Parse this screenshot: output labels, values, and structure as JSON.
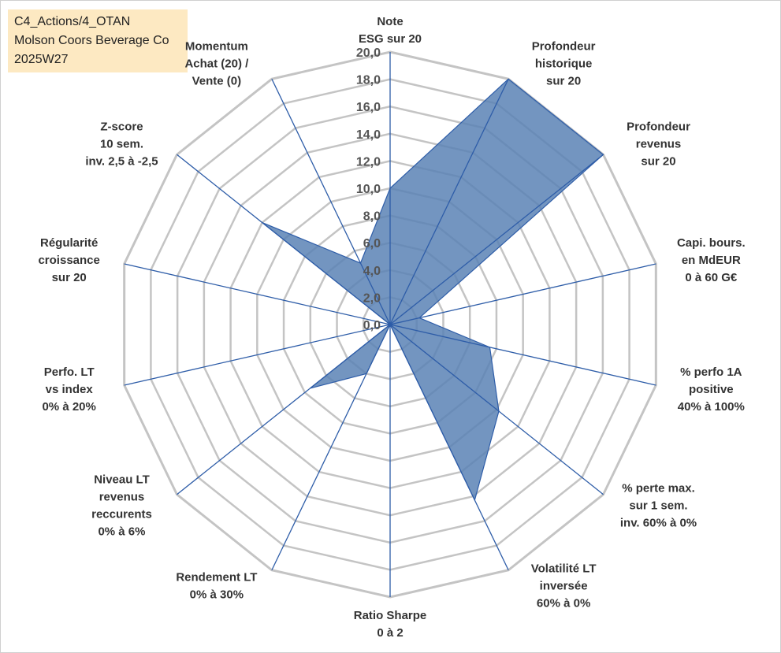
{
  "header": {
    "line1": "C4_Actions/4_OTAN",
    "line2": "Molson Coors Beverage Co",
    "line3": "2025W27"
  },
  "chart_data": {
    "type": "radar",
    "title": "",
    "rmin": 0,
    "rmax": 20,
    "tick_step": 2,
    "tick_labels": [
      "0,0",
      "2,0",
      "4,0",
      "6,0",
      "8,0",
      "10,0",
      "12,0",
      "14,0",
      "16,0",
      "18,0",
      "20,0"
    ],
    "grid": true,
    "colors": {
      "fill": "#5b82b5",
      "line": "#2e5da8",
      "grid": "#c4c4c4",
      "spoke": "#2e5da8"
    },
    "axes": [
      {
        "label": [
          "Note",
          "ESG sur 20"
        ],
        "value": 10.0
      },
      {
        "label": [
          "Profondeur",
          "historique",
          "sur 20"
        ],
        "value": 20.0
      },
      {
        "label": [
          "Profondeur",
          "revenus",
          "sur 20"
        ],
        "value": 20.0
      },
      {
        "label": [
          "Capi. bours.",
          "en MdEUR",
          "0 à 60 G€"
        ],
        "value": 2.2
      },
      {
        "label": [
          "% perfo 1A",
          "positive",
          "40% à 100%"
        ],
        "value": 7.5
      },
      {
        "label": [
          "% perte max.",
          "sur 1 sem.",
          "inv. 60% à 0%"
        ],
        "value": 10.2
      },
      {
        "label": [
          "Volatilité LT",
          "inversée",
          "60% à 0%"
        ],
        "value": 14.3
      },
      {
        "label": [
          "Ratio Sharpe",
          "0 à 2"
        ],
        "value": 0.0
      },
      {
        "label": [
          "Rendement LT",
          "0% à 30%"
        ],
        "value": 4.0
      },
      {
        "label": [
          "Niveau LT",
          "revenus",
          "reccurents",
          "0% à 6%"
        ],
        "value": 7.5
      },
      {
        "label": [
          "Perfo. LT",
          "vs index",
          "0% à 20%"
        ],
        "value": 0.0
      },
      {
        "label": [
          "Régularité",
          "croissance",
          "sur 20"
        ],
        "value": 0.0
      },
      {
        "label": [
          "Z-score",
          "10 sem.",
          "inv. 2,5 à -2,5"
        ],
        "value": 12.0
      },
      {
        "label": [
          "Momentum",
          "Achat (20) /",
          "Vente (0)"
        ],
        "value": 5.0
      }
    ]
  }
}
